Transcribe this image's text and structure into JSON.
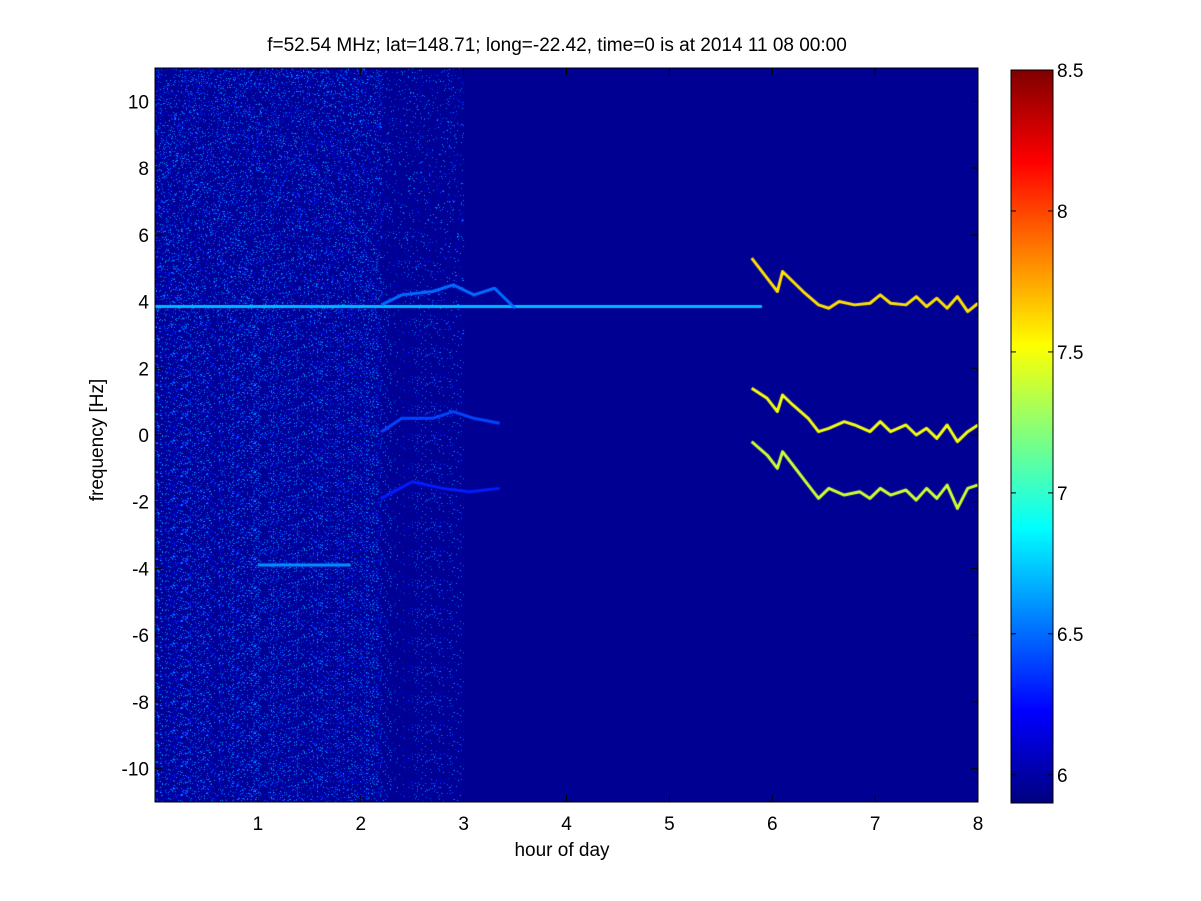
{
  "chart_data": {
    "type": "heatmap",
    "title": "f=52.54 MHz;  lat=148.71; long=-22.42, time=0 is at 2014 11 08 00:00",
    "xlabel": "hour of day",
    "ylabel": "frequency [Hz]",
    "xlim": [
      0,
      8
    ],
    "ylim": [
      -11,
      11
    ],
    "x_ticks": [
      1,
      2,
      3,
      4,
      5,
      6,
      7,
      8
    ],
    "y_ticks": [
      -10,
      -8,
      -6,
      -4,
      -2,
      0,
      2,
      4,
      6,
      8,
      10
    ],
    "colorbar": {
      "colormap": "jet",
      "range": [
        5.9,
        8.5
      ],
      "ticks": [
        6,
        6.5,
        7,
        7.5,
        8,
        8.5
      ]
    },
    "background_value": 5.95,
    "noise_regions": [
      {
        "x": [
          0,
          2.2
        ],
        "level": 0.55
      },
      {
        "x": [
          2.2,
          3.0
        ],
        "level": 0.2
      }
    ],
    "traces": [
      {
        "name": "line-4hz",
        "points": [
          [
            0,
            3.85
          ],
          [
            2,
            3.85
          ],
          [
            4,
            3.85
          ],
          [
            5.9,
            3.85
          ]
        ],
        "value": 6.7
      },
      {
        "name": "line-minus4hz",
        "points": [
          [
            1.0,
            -3.9
          ],
          [
            1.9,
            -3.9
          ]
        ],
        "value": 6.6
      },
      {
        "name": "arc-upper-early",
        "points": [
          [
            2.2,
            3.9
          ],
          [
            2.4,
            4.2
          ],
          [
            2.7,
            4.3
          ],
          [
            2.9,
            4.5
          ],
          [
            3.1,
            4.2
          ],
          [
            3.3,
            4.4
          ],
          [
            3.5,
            3.8
          ]
        ],
        "value": 6.5
      },
      {
        "name": "arc-mid-early",
        "points": [
          [
            2.2,
            0.1
          ],
          [
            2.4,
            0.5
          ],
          [
            2.7,
            0.5
          ],
          [
            2.9,
            0.7
          ],
          [
            3.1,
            0.5
          ],
          [
            3.35,
            0.35
          ]
        ],
        "value": 6.4
      },
      {
        "name": "arc-lower-early",
        "points": [
          [
            2.2,
            -1.9
          ],
          [
            2.5,
            -1.4
          ],
          [
            2.8,
            -1.6
          ],
          [
            3.05,
            -1.7
          ],
          [
            3.35,
            -1.6
          ]
        ],
        "value": 6.3
      },
      {
        "name": "upper-branch",
        "points": [
          [
            5.8,
            5.3
          ],
          [
            5.95,
            4.7
          ],
          [
            6.05,
            4.3
          ],
          [
            6.1,
            4.9
          ],
          [
            6.2,
            4.6
          ],
          [
            6.3,
            4.3
          ],
          [
            6.45,
            3.9
          ],
          [
            6.55,
            3.8
          ],
          [
            6.65,
            4.0
          ],
          [
            6.8,
            3.9
          ],
          [
            6.95,
            3.95
          ],
          [
            7.05,
            4.2
          ],
          [
            7.15,
            3.95
          ],
          [
            7.3,
            3.9
          ],
          [
            7.4,
            4.15
          ],
          [
            7.5,
            3.85
          ],
          [
            7.6,
            4.1
          ],
          [
            7.7,
            3.8
          ],
          [
            7.8,
            4.15
          ],
          [
            7.9,
            3.7
          ],
          [
            8.0,
            3.95
          ]
        ],
        "value": 7.6
      },
      {
        "name": "middle-branch",
        "points": [
          [
            5.8,
            1.4
          ],
          [
            5.95,
            1.1
          ],
          [
            6.05,
            0.7
          ],
          [
            6.1,
            1.2
          ],
          [
            6.2,
            0.9
          ],
          [
            6.35,
            0.5
          ],
          [
            6.45,
            0.1
          ],
          [
            6.55,
            0.2
          ],
          [
            6.7,
            0.4
          ],
          [
            6.8,
            0.3
          ],
          [
            6.95,
            0.1
          ],
          [
            7.05,
            0.4
          ],
          [
            7.15,
            0.1
          ],
          [
            7.3,
            0.3
          ],
          [
            7.4,
            0.0
          ],
          [
            7.5,
            0.2
          ],
          [
            7.6,
            -0.1
          ],
          [
            7.7,
            0.3
          ],
          [
            7.8,
            -0.2
          ],
          [
            7.9,
            0.1
          ],
          [
            8.0,
            0.3
          ]
        ],
        "value": 7.5
      },
      {
        "name": "lower-branch",
        "points": [
          [
            5.8,
            -0.2
          ],
          [
            5.95,
            -0.6
          ],
          [
            6.05,
            -1.0
          ],
          [
            6.1,
            -0.5
          ],
          [
            6.2,
            -0.9
          ],
          [
            6.35,
            -1.5
          ],
          [
            6.45,
            -1.9
          ],
          [
            6.55,
            -1.6
          ],
          [
            6.7,
            -1.8
          ],
          [
            6.85,
            -1.7
          ],
          [
            6.95,
            -1.9
          ],
          [
            7.05,
            -1.6
          ],
          [
            7.15,
            -1.8
          ],
          [
            7.3,
            -1.65
          ],
          [
            7.4,
            -1.95
          ],
          [
            7.5,
            -1.6
          ],
          [
            7.6,
            -1.9
          ],
          [
            7.7,
            -1.5
          ],
          [
            7.8,
            -2.2
          ],
          [
            7.9,
            -1.6
          ],
          [
            8.0,
            -1.5
          ]
        ],
        "value": 7.4
      }
    ]
  }
}
